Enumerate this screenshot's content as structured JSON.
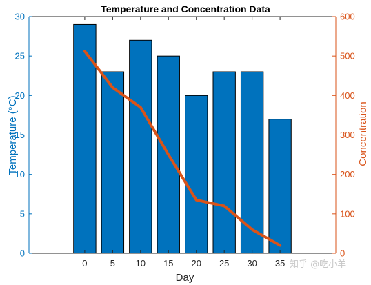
{
  "chart_data": {
    "type": "bar",
    "title": "Temperature and Concentration Data",
    "xlabel": "Day",
    "ylabel_left": "Temperature (°C)",
    "ylabel_right": "Concentration",
    "categories": [
      "0",
      "5",
      "10",
      "15",
      "20",
      "25",
      "30",
      "35"
    ],
    "x": [
      0,
      5,
      10,
      15,
      20,
      25,
      30,
      35
    ],
    "xlim": [
      -10,
      45
    ],
    "ylim_left": [
      0,
      30
    ],
    "ylim_right": [
      0,
      600
    ],
    "yticks_left": [
      "0",
      "5",
      "10",
      "15",
      "20",
      "25",
      "30"
    ],
    "yticks_right": [
      "0",
      "100",
      "200",
      "300",
      "400",
      "500",
      "600"
    ],
    "grid": false,
    "series": [
      {
        "type": "bar",
        "axis": "left",
        "values": [
          29,
          23,
          27,
          25,
          20,
          23,
          23,
          17
        ],
        "color": "#0072BD"
      },
      {
        "type": "line",
        "axis": "right",
        "values": [
          512,
          420,
          370,
          250,
          135,
          120,
          60,
          20
        ],
        "color": "#D95319"
      }
    ]
  },
  "watermark": "知乎 @吃小羊",
  "colors": {
    "left_axis": "#0072BD",
    "right_axis": "#D95319",
    "bar_edge": "#000000"
  }
}
